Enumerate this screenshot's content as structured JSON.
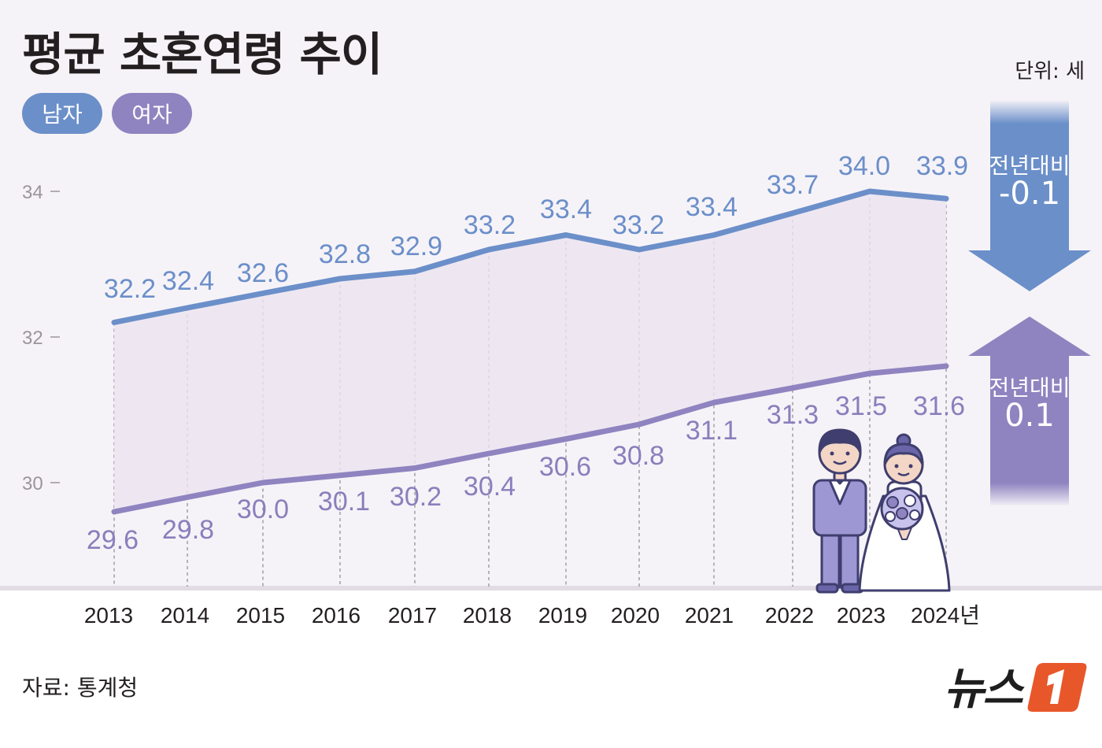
{
  "title": "평균 초혼연령 추이",
  "unit": "단위: 세",
  "source": "자료: 통계청",
  "logo": "뉴스",
  "legend": {
    "male": "남자",
    "female": "여자"
  },
  "change": {
    "male": {
      "label": "전년대비",
      "value": "-0.1"
    },
    "female": {
      "label": "전년대비",
      "value": "0.1"
    }
  },
  "colors": {
    "male": "#6b8fc9",
    "female": "#8f84c0",
    "male_label": "#6b8fc9",
    "female_label": "#8a7fbc",
    "band": "#ece4ef",
    "logo_accent": "#e8572a"
  },
  "chart_data": {
    "type": "line",
    "x": [
      "2013",
      "2014",
      "2015",
      "2016",
      "2017",
      "2018",
      "2019",
      "2020",
      "2021",
      "2022",
      "2023",
      "2024년"
    ],
    "series": [
      {
        "name": "남자",
        "values": [
          32.2,
          32.4,
          32.6,
          32.8,
          32.9,
          33.2,
          33.4,
          33.2,
          33.4,
          33.7,
          34.0,
          33.9
        ]
      },
      {
        "name": "여자",
        "values": [
          29.6,
          29.8,
          30.0,
          30.1,
          30.2,
          30.4,
          30.6,
          30.8,
          31.1,
          31.3,
          31.5,
          31.6
        ]
      }
    ],
    "value_labels": {
      "남자": [
        "32.2",
        "32.4",
        "32.6",
        "32.8",
        "32.9",
        "33.2",
        "33.4",
        "33.2",
        "33.4",
        "33.7",
        "34.0",
        "33.9"
      ],
      "여자": [
        "29.6",
        "29.8",
        "30.0",
        "30.1",
        "30.2",
        "30.4",
        "30.6",
        "30.8",
        "31.1",
        "31.3",
        "31.5",
        "31.6"
      ]
    },
    "yticks": [
      "30",
      "32",
      "34"
    ],
    "ylim": [
      29,
      35
    ],
    "grid": "vertical-dashed",
    "legend_position": "top-left"
  }
}
